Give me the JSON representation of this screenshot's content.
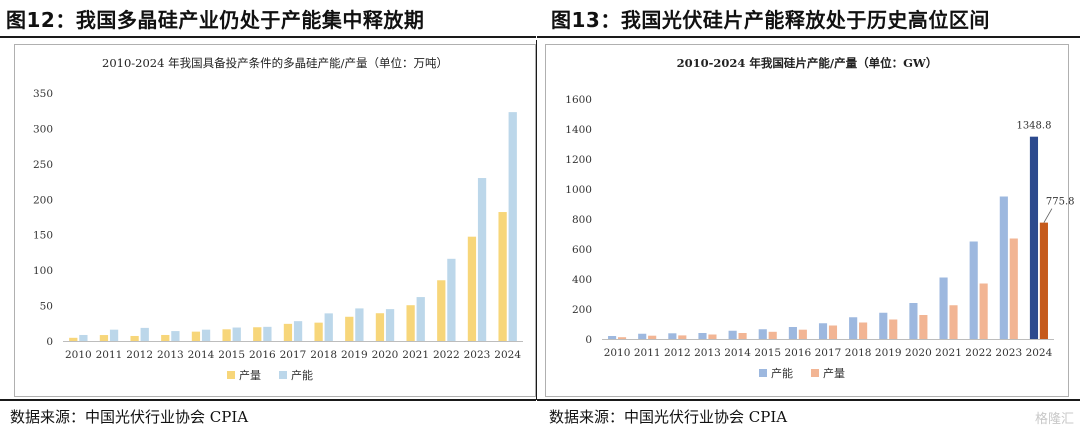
{
  "left": {
    "fig_title": "图12：我国多晶硅产业仍处于产能集中释放期",
    "source": "数据来源：中国光伏行业协会 CPIA"
  },
  "right": {
    "fig_title": "图13：我国光伏硅片产能释放处于历史高位区间",
    "source": "数据来源：中国光伏行业协会 CPIA"
  },
  "watermark": "格隆汇",
  "chart_data": [
    {
      "type": "bar",
      "title": "2010-2024 年我国具备投产条件的多晶硅产能/产量（单位：万吨）",
      "categories": [
        "2010",
        "2011",
        "2012",
        "2013",
        "2014",
        "2015",
        "2016",
        "2017",
        "2018",
        "2019",
        "2020",
        "2021",
        "2022",
        "2023",
        "2024"
      ],
      "series": [
        {
          "name": "产量",
          "color": "#f7d67a",
          "values": [
            4.5,
            8.4,
            7.1,
            8.5,
            13.2,
            16.5,
            19.4,
            24.2,
            25.9,
            34.2,
            39.2,
            50.5,
            85.7,
            147.2,
            182.0
          ]
        },
        {
          "name": "产能",
          "color": "#bcd7ea",
          "values": [
            8.5,
            16.0,
            18.5,
            14.0,
            16.0,
            19.0,
            20.0,
            28.0,
            39.0,
            46.0,
            45.0,
            62.0,
            116.0,
            230.0,
            323.0
          ]
        }
      ],
      "ylim": [
        0,
        350
      ],
      "yticks": [
        0,
        50,
        100,
        150,
        200,
        250,
        300,
        350
      ],
      "grid": false,
      "legend": "bottom"
    },
    {
      "type": "bar",
      "title": "2010-2024 年我国硅片产能/产量（单位：GW）",
      "categories": [
        "2010",
        "2011",
        "2012",
        "2013",
        "2014",
        "2015",
        "2016",
        "2017",
        "2018",
        "2019",
        "2020",
        "2021",
        "2022",
        "2023",
        "2024"
      ],
      "series": [
        {
          "name": "产能",
          "color": "#9db8df",
          "highlight_color": "#2c4a8e",
          "values": [
            20,
            35,
            38,
            40,
            55,
            65,
            80,
            105,
            145,
            175,
            240,
            410,
            650,
            950,
            1348.8
          ]
        },
        {
          "name": "产量",
          "color": "#f2b594",
          "highlight_color": "#c55a1c",
          "values": [
            12,
            22,
            24,
            30,
            40,
            48,
            62,
            90,
            110,
            130,
            160,
            225,
            370,
            670,
            775.8
          ]
        }
      ],
      "data_labels": [
        "1348.8",
        "775.8"
      ],
      "ylim": [
        0,
        1600
      ],
      "yticks": [
        0,
        200,
        400,
        600,
        800,
        1000,
        1200,
        1400,
        1600
      ],
      "grid": false,
      "legend": "bottom"
    }
  ]
}
